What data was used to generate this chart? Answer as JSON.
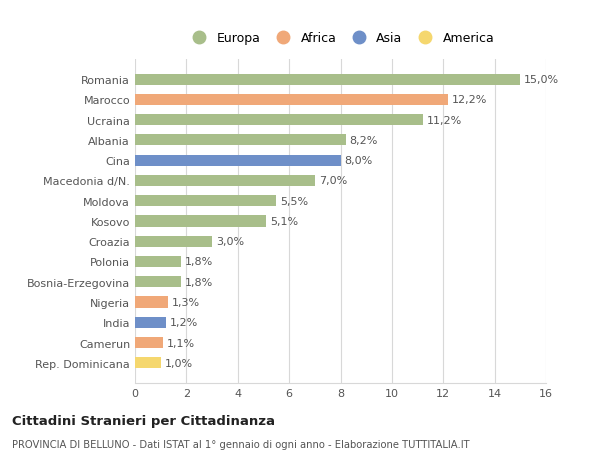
{
  "categories": [
    "Rep. Dominicana",
    "Camerun",
    "India",
    "Nigeria",
    "Bosnia-Erzegovina",
    "Polonia",
    "Croazia",
    "Kosovo",
    "Moldova",
    "Macedonia d/N.",
    "Cina",
    "Albania",
    "Ucraina",
    "Marocco",
    "Romania"
  ],
  "values": [
    1.0,
    1.1,
    1.2,
    1.3,
    1.8,
    1.8,
    3.0,
    5.1,
    5.5,
    7.0,
    8.0,
    8.2,
    11.2,
    12.2,
    15.0
  ],
  "labels": [
    "1,0%",
    "1,1%",
    "1,2%",
    "1,3%",
    "1,8%",
    "1,8%",
    "3,0%",
    "5,1%",
    "5,5%",
    "7,0%",
    "8,0%",
    "8,2%",
    "11,2%",
    "12,2%",
    "15,0%"
  ],
  "colors": [
    "#f5d76e",
    "#f0a878",
    "#6e8fc8",
    "#f0a878",
    "#a8be8a",
    "#a8be8a",
    "#a8be8a",
    "#a8be8a",
    "#a8be8a",
    "#a8be8a",
    "#6e8fc8",
    "#a8be8a",
    "#a8be8a",
    "#f0a878",
    "#a8be8a"
  ],
  "legend_labels": [
    "Europa",
    "Africa",
    "Asia",
    "America"
  ],
  "legend_colors": [
    "#a8be8a",
    "#f0a878",
    "#6e8fc8",
    "#f5d76e"
  ],
  "xlim": [
    0,
    16
  ],
  "xticks": [
    0,
    2,
    4,
    6,
    8,
    10,
    12,
    14,
    16
  ],
  "title": "Cittadini Stranieri per Cittadinanza",
  "subtitle": "PROVINCIA DI BELLUNO - Dati ISTAT al 1° gennaio di ogni anno - Elaborazione TUTTITALIA.IT",
  "background_color": "#ffffff",
  "grid_color": "#d8d8d8"
}
